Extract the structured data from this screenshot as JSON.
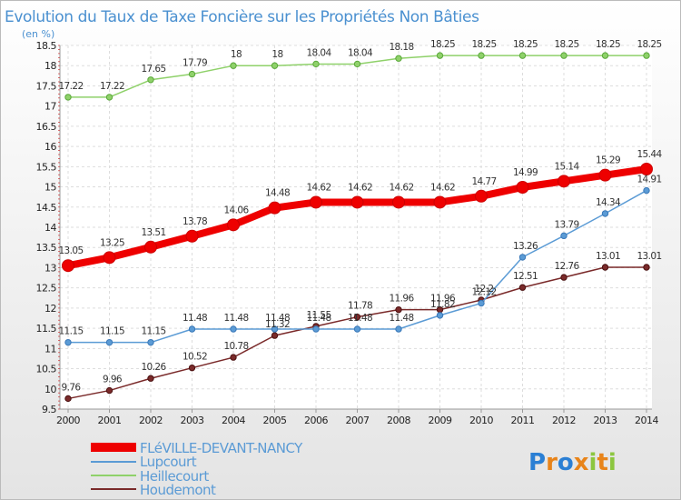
{
  "chart_data": {
    "type": "line",
    "title": "Evolution du Taux de Taxe Foncière sur les Propriétés Non Bâties",
    "subtitle": "(en %)",
    "xlabel": "",
    "ylabel": "",
    "ylim": [
      9.5,
      18.5
    ],
    "yticks": [
      "9.5",
      "10",
      "10.5",
      "11",
      "11.5",
      "12",
      "12.5",
      "13",
      "13.5",
      "14",
      "14.5",
      "15",
      "15.5",
      "16",
      "16.5",
      "17",
      "17.5",
      "18",
      "18.5"
    ],
    "x": [
      "2000",
      "2001",
      "2002",
      "2003",
      "2004",
      "2005",
      "2006",
      "2007",
      "2008",
      "2009",
      "2010",
      "2011",
      "2012",
      "2013",
      "2014"
    ],
    "grid": true,
    "legend_position": "bottom-left",
    "series": [
      {
        "name": "FLéVILLE-DEVANT-NANCY",
        "color": "#ee0000",
        "values": [
          13.05,
          13.25,
          13.51,
          13.78,
          14.06,
          14.48,
          14.62,
          14.62,
          14.62,
          14.62,
          14.77,
          14.99,
          15.14,
          15.29,
          15.44
        ],
        "labels": [
          "13.05",
          "13.25",
          "13.51",
          "13.78",
          "14.06",
          "14.48",
          "14.62",
          "14.62",
          "14.62",
          "14.62",
          "14.77",
          "14.99",
          "15.14",
          "15.29",
          "15.44"
        ]
      },
      {
        "name": "Lupcourt",
        "color": "#5b9bd5",
        "values": [
          11.15,
          11.15,
          11.15,
          11.48,
          11.48,
          11.48,
          11.48,
          11.48,
          11.48,
          11.82,
          12.12,
          13.26,
          13.79,
          14.34,
          14.91
        ],
        "labels": [
          "11.15",
          "11.15",
          "11.15",
          "11.48",
          "11.48",
          "11.48",
          "11.48",
          "11.48",
          "11.48",
          "11.82",
          "12.12",
          "13.26",
          "13.79",
          "14.34",
          "14.91"
        ]
      },
      {
        "name": "Heillecourt",
        "color": "#8fd16a",
        "values": [
          17.22,
          17.22,
          17.65,
          17.79,
          18,
          18,
          18.04,
          18.04,
          18.18,
          18.25,
          18.25,
          18.25,
          18.25,
          18.25,
          18.25
        ],
        "labels": [
          "17.22",
          "17.22",
          "17.65",
          "17.79",
          "18",
          "18",
          "18.04",
          "18.04",
          "18.18",
          "18.25",
          "18.25",
          "18.25",
          "18.25",
          "18.25",
          "18.25"
        ]
      },
      {
        "name": "Houdemont",
        "color": "#7a2a2a",
        "values": [
          9.76,
          9.96,
          10.26,
          10.52,
          10.78,
          11.32,
          11.55,
          11.78,
          11.96,
          11.96,
          12.2,
          12.51,
          12.76,
          13.01,
          13.01
        ],
        "labels": [
          "9.76",
          "9.96",
          "10.26",
          "10.52",
          "10.78",
          "11.32",
          "11.55",
          "11.78",
          "11.96",
          "11.96",
          "12.2",
          "12.51",
          "12.76",
          "13.01",
          "13.01"
        ]
      }
    ]
  },
  "logo": {
    "text": "Proxiti"
  }
}
